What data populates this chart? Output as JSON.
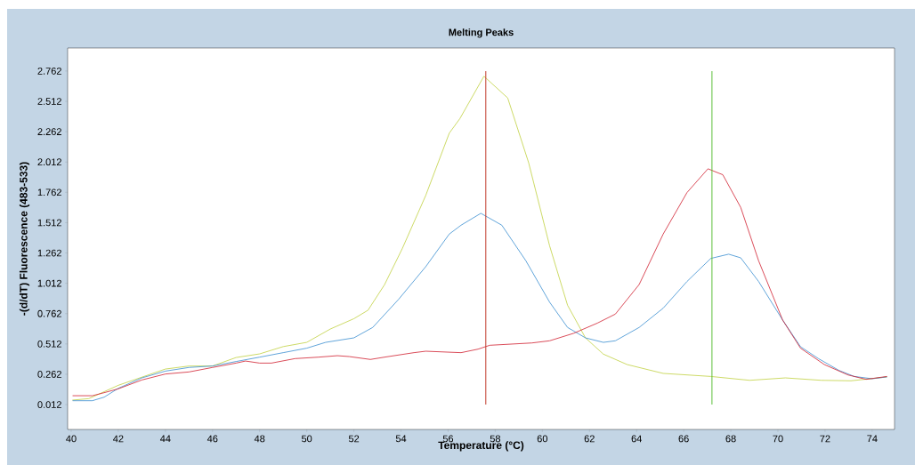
{
  "chart_data": {
    "type": "line",
    "title": "Melting Peaks",
    "xlabel": "Temperature (°C)",
    "ylabel": "-(d/dT) Fluorescence (483-533)",
    "xlim": [
      39.85,
      74.95
    ],
    "ylim": [
      -0.193,
      2.952
    ],
    "xticks": [
      40,
      42,
      44,
      46,
      48,
      50,
      52,
      54,
      56,
      58,
      60,
      62,
      64,
      66,
      68,
      70,
      72,
      74
    ],
    "yticks": [
      0.012,
      0.262,
      0.512,
      0.762,
      1.012,
      1.262,
      1.512,
      1.762,
      2.012,
      2.262,
      2.512,
      2.762
    ],
    "grid": false,
    "ref_lines": [
      {
        "axis": "x",
        "value": 57.6,
        "color": "#c0392b"
      },
      {
        "axis": "x",
        "value": 67.2,
        "color": "#5cbf3a"
      }
    ],
    "series": [
      {
        "color": "#c0d040",
        "x": [
          40.05,
          40.75,
          42,
          44,
          45,
          46,
          47,
          48,
          49,
          50,
          51,
          52,
          52.6,
          53.3,
          54.05,
          55.05,
          56.05,
          56.5,
          57.52,
          58.53,
          59.42,
          60.31,
          61.07,
          61.83,
          62.59,
          63.6,
          65.13,
          67.15,
          68.8,
          70.32,
          71.84,
          73.1,
          74.63
        ],
        "values": [
          0.049,
          0.061,
          0.171,
          0.305,
          0.33,
          0.33,
          0.4,
          0.43,
          0.49,
          0.525,
          0.635,
          0.72,
          0.79,
          1.0,
          1.296,
          1.736,
          2.25,
          2.37,
          2.719,
          2.54,
          2.005,
          1.32,
          0.831,
          0.562,
          0.428,
          0.342,
          0.269,
          0.244,
          0.212,
          0.232,
          0.212,
          0.208,
          0.24
        ]
      },
      {
        "color": "#3a8ed0",
        "x": [
          40.06,
          40.9,
          41.4,
          42,
          43,
          44,
          45,
          46,
          47,
          48,
          49,
          50,
          50.8,
          52,
          52.8,
          53.9,
          55.05,
          56.05,
          56.55,
          57.39,
          58.28,
          59.3,
          60.31,
          61.07,
          61.83,
          62.59,
          63.1,
          64.11,
          65.13,
          66.14,
          67.15,
          67.91,
          68.42,
          69.18,
          70.2,
          70.96,
          71.72,
          72.6,
          73.24,
          74,
          74.63
        ],
        "values": [
          0.044,
          0.044,
          0.073,
          0.146,
          0.232,
          0.288,
          0.318,
          0.33,
          0.367,
          0.403,
          0.44,
          0.477,
          0.525,
          0.562,
          0.648,
          0.88,
          1.149,
          1.418,
          1.491,
          1.589,
          1.491,
          1.198,
          0.856,
          0.648,
          0.562,
          0.525,
          0.538,
          0.648,
          0.807,
          1.027,
          1.217,
          1.252,
          1.222,
          1.027,
          0.709,
          0.489,
          0.391,
          0.293,
          0.244,
          0.225,
          0.24
        ]
      },
      {
        "color": "#d02030",
        "x": [
          40.06,
          40.9,
          41.4,
          42,
          43,
          44,
          45,
          46,
          47,
          47.4,
          48,
          48.5,
          49.5,
          50.5,
          51.3,
          51.8,
          52.7,
          53.3,
          54.55,
          55.05,
          56.55,
          57.27,
          57.77,
          59.55,
          60.31,
          61.32,
          62.34,
          63.1,
          64.11,
          65.13,
          66.14,
          67.03,
          67.66,
          68.42,
          69.18,
          70.2,
          70.96,
          71.97,
          72.98,
          73.74,
          74.63
        ],
        "values": [
          0.085,
          0.085,
          0.11,
          0.142,
          0.215,
          0.264,
          0.281,
          0.318,
          0.354,
          0.371,
          0.354,
          0.354,
          0.391,
          0.403,
          0.415,
          0.408,
          0.384,
          0.403,
          0.44,
          0.452,
          0.44,
          0.469,
          0.501,
          0.52,
          0.538,
          0.599,
          0.684,
          0.758,
          1.002,
          1.418,
          1.76,
          1.956,
          1.907,
          1.638,
          1.198,
          0.709,
          0.477,
          0.342,
          0.256,
          0.22,
          0.244
        ]
      }
    ]
  }
}
